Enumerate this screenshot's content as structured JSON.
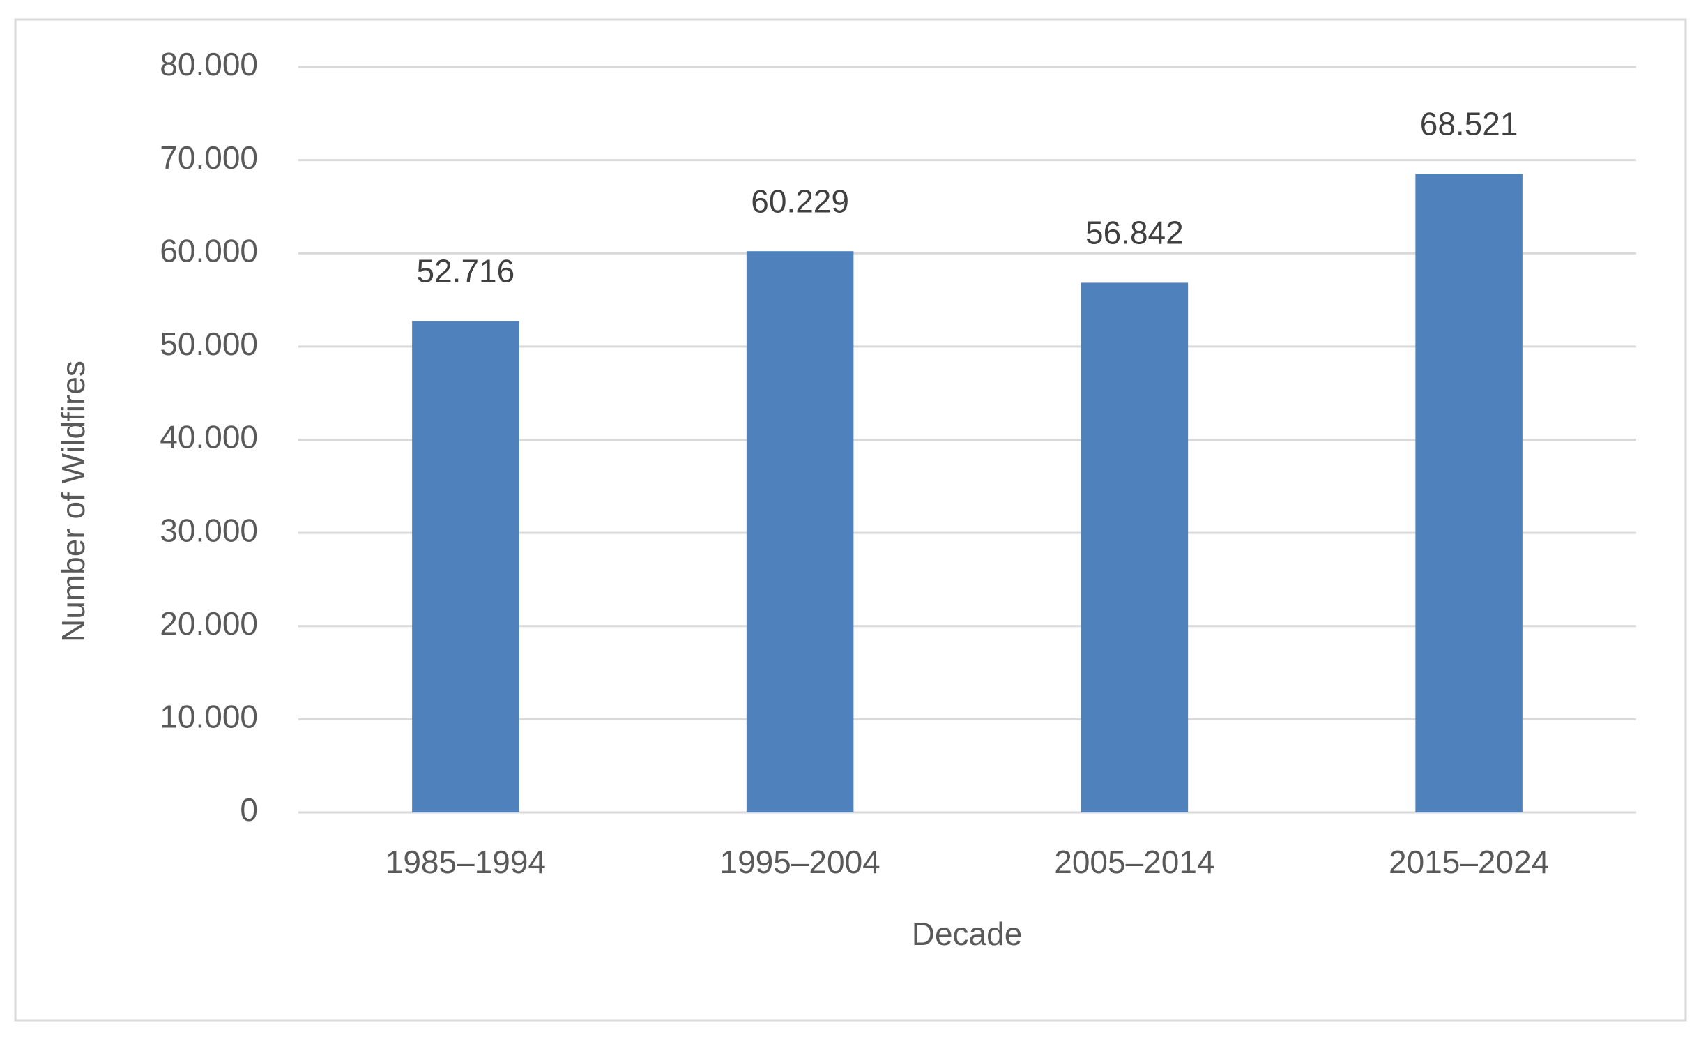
{
  "chart_data": {
    "type": "bar",
    "x_label": "Decade",
    "y_label": "Number of Wildfires",
    "categories": [
      "1985–1994",
      "1995–2004",
      "2005–2014",
      "2015–2024"
    ],
    "values": [
      52716,
      60229,
      56842,
      68521
    ],
    "value_labels": [
      "52.716",
      "60.229",
      "56.842",
      "68.521"
    ],
    "color": "#4f81bd",
    "ylim": [
      0,
      80000
    ],
    "yticks": [
      0,
      {
        "value": 10000,
        "label": "10.000"
      },
      {
        "value": 20000,
        "label": "20.000"
      },
      {
        "value": 30000,
        "label": "30.000"
      },
      {
        "value": 40000,
        "label": "40.000"
      },
      {
        "value": 50000,
        "label": "50.000"
      },
      {
        "value": 60000,
        "label": "60.000"
      },
      {
        "value": 70000,
        "label": "70.000"
      },
      {
        "value": 80000,
        "label": "80.000"
      }
    ],
    "grid": true
  }
}
